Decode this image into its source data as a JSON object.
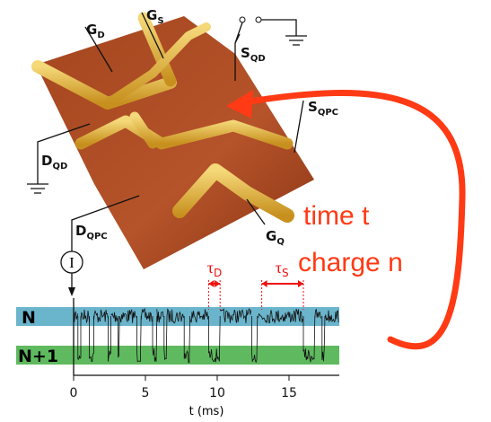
{
  "labels": {
    "gd": {
      "main": "G",
      "sub": "D"
    },
    "gs": {
      "main": "G",
      "sub": "S"
    },
    "sqd": {
      "main": "S",
      "sub": "QD"
    },
    "sqpc": {
      "main": "S",
      "sub": "QPC"
    },
    "dqd": {
      "main": "D",
      "sub": "QD"
    },
    "dqpc": {
      "main": "D",
      "sub": "QPC"
    },
    "gq": {
      "main": "G",
      "sub": "Q"
    },
    "meter": "I"
  },
  "annotation": {
    "line1": "time t",
    "line2": "charge n"
  },
  "trace": {
    "xlim": [
      0,
      18.5
    ],
    "xticks": [
      0,
      5,
      10,
      15
    ],
    "xlabel": "t (ms)",
    "levels": [
      "N",
      "N+1"
    ],
    "n_plus_1_intervals": [
      [
        0.3,
        0.5
      ],
      [
        1.1,
        1.4
      ],
      [
        2.4,
        2.6
      ],
      [
        3.1,
        3.2
      ],
      [
        4.4,
        4.7
      ],
      [
        5.5,
        5.8
      ],
      [
        6.3,
        6.5
      ],
      [
        7.7,
        8.1
      ],
      [
        9.4,
        10.2
      ],
      [
        12.4,
        12.8
      ],
      [
        16.0,
        16.8
      ],
      [
        17.3,
        17.5
      ]
    ],
    "tau_d": {
      "symbol": "τ",
      "sub": "D",
      "span": [
        9.4,
        10.2
      ]
    },
    "tau_s": {
      "symbol": "τ",
      "sub": "S",
      "span": [
        13.1,
        16.0
      ]
    }
  }
}
